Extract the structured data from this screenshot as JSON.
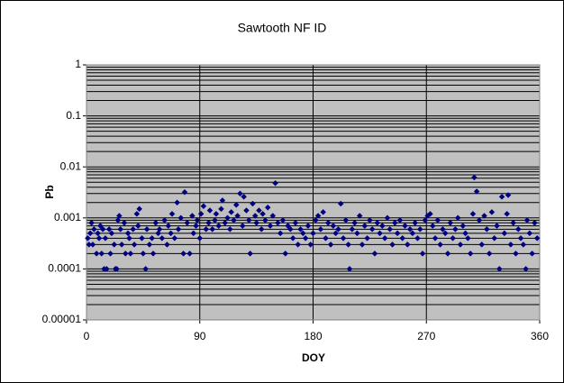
{
  "chart_data": {
    "type": "scatter",
    "title": "Sawtooth NF ID",
    "x_label": "DOY",
    "y_label": "Pb",
    "log_y": true,
    "minor_grid": true,
    "grid": true,
    "background": "#c0c0c0",
    "xlim": [
      0,
      360
    ],
    "xticks": [
      0,
      90,
      180,
      270,
      360
    ],
    "ylim": [
      1e-05,
      1
    ],
    "yticks": [
      1e-05,
      0.0001,
      0.001,
      0.01,
      0.1,
      1
    ],
    "series": [
      {
        "color": "#000080",
        "x": [
          1,
          2,
          3,
          4,
          5,
          6,
          8,
          9,
          10,
          11,
          12,
          13,
          14,
          15,
          16,
          18,
          19,
          20,
          22,
          23,
          24,
          25,
          26,
          27,
          28,
          30,
          31,
          33,
          34,
          35,
          37,
          38,
          40,
          41,
          42,
          44,
          45,
          47,
          48,
          50,
          52,
          53,
          55,
          57,
          58,
          60,
          62,
          64,
          65,
          67,
          68,
          70,
          72,
          73,
          75,
          77,
          78,
          80,
          82,
          84,
          85,
          87,
          88,
          90,
          91,
          93,
          95,
          97,
          98,
          100,
          102,
          103,
          105,
          107,
          108,
          110,
          112,
          114,
          115,
          117,
          119,
          120,
          122,
          124,
          125,
          127,
          129,
          130,
          132,
          134,
          135,
          137,
          139,
          140,
          142,
          144,
          146,
          148,
          150,
          152,
          154,
          156,
          158,
          160,
          162,
          164,
          166,
          168,
          170,
          172,
          174,
          176,
          178,
          180,
          182,
          184,
          186,
          188,
          190,
          192,
          194,
          196,
          198,
          200,
          202,
          204,
          206,
          208,
          209,
          211,
          213,
          215,
          217,
          219,
          221,
          223,
          225,
          227,
          229,
          231,
          233,
          235,
          237,
          239,
          241,
          243,
          245,
          247,
          249,
          251,
          253,
          255,
          257,
          259,
          261,
          263,
          265,
          267,
          269,
          271,
          273,
          275,
          277,
          279,
          281,
          283,
          285,
          287,
          289,
          291,
          293,
          295,
          297,
          299,
          301,
          303,
          305,
          307,
          308,
          310,
          312,
          314,
          316,
          318,
          320,
          322,
          324,
          326,
          328,
          330,
          332,
          334,
          335,
          337,
          339,
          341,
          343,
          345,
          347,
          349,
          350,
          352,
          354,
          356,
          358
        ],
        "values": [
          0.0004,
          0.0003,
          0.0005,
          0.0008,
          0.0003,
          0.0006,
          0.0002,
          0.0005,
          0.0004,
          0.0007,
          0.0002,
          0.0006,
          0.0001,
          0.0004,
          0.0001,
          0.0006,
          0.0002,
          0.0005,
          0.0003,
          0.0001,
          0.0001,
          0.0009,
          0.0011,
          0.0006,
          0.0003,
          0.0008,
          0.0002,
          0.0005,
          0.0004,
          0.0002,
          0.0006,
          0.0003,
          0.0012,
          0.0007,
          0.0015,
          0.0004,
          0.0002,
          0.0001,
          0.0006,
          0.0003,
          0.0004,
          0.0002,
          0.0008,
          0.0005,
          0.0006,
          0.0004,
          0.0009,
          0.0003,
          0.0007,
          0.0005,
          0.0012,
          0.0004,
          0.002,
          0.0006,
          0.001,
          0.0002,
          0.0032,
          0.0008,
          0.0002,
          0.0011,
          0.0005,
          0.0007,
          0.0009,
          0.0004,
          0.0012,
          0.0017,
          0.0006,
          0.0008,
          0.0014,
          0.0006,
          0.0009,
          0.0012,
          0.0007,
          0.0015,
          0.0022,
          0.0008,
          0.001,
          0.0006,
          0.0013,
          0.0009,
          0.0018,
          0.0011,
          0.003,
          0.0007,
          0.0026,
          0.0014,
          0.0009,
          0.0002,
          0.0019,
          0.0011,
          0.0008,
          0.0014,
          0.0006,
          0.0012,
          0.0009,
          0.0016,
          0.0007,
          0.0011,
          0.0048,
          0.0008,
          0.0005,
          0.0009,
          0.0002,
          0.0007,
          0.0006,
          0.0004,
          0.0008,
          0.0003,
          0.0006,
          0.0005,
          0.0004,
          0.0007,
          0.0003,
          0.0005,
          0.0009,
          0.0011,
          0.0006,
          0.0013,
          0.0004,
          0.0008,
          0.0003,
          0.0007,
          0.0005,
          0.0006,
          0.0019,
          0.0004,
          0.0009,
          0.0003,
          0.0001,
          0.0006,
          0.0008,
          0.0005,
          0.0011,
          0.0003,
          0.0007,
          0.0004,
          0.0009,
          0.0006,
          0.0002,
          0.0008,
          0.0005,
          0.0007,
          0.0004,
          0.001,
          0.0006,
          0.0003,
          0.0008,
          0.0005,
          0.0009,
          0.0004,
          0.0007,
          0.0003,
          0.0006,
          0.0005,
          0.0008,
          0.0004,
          0.0006,
          0.0002,
          0.0009,
          0.0011,
          0.0012,
          0.0007,
          0.0004,
          0.0009,
          0.0003,
          0.0006,
          0.0005,
          0.0002,
          0.0008,
          0.0004,
          0.0006,
          0.001,
          0.0003,
          0.0007,
          0.0005,
          0.0004,
          0.0002,
          0.0012,
          0.0062,
          0.0033,
          0.0009,
          0.0003,
          0.0011,
          0.0006,
          0.0002,
          0.0013,
          0.0004,
          0.0007,
          0.0001,
          0.0026,
          0.0005,
          0.0012,
          0.0028,
          0.0003,
          0.0008,
          0.0002,
          0.0006,
          0.0004,
          0.0003,
          0.0001,
          0.0009,
          0.0005,
          0.0002,
          0.0008,
          0.0004
        ]
      }
    ]
  }
}
